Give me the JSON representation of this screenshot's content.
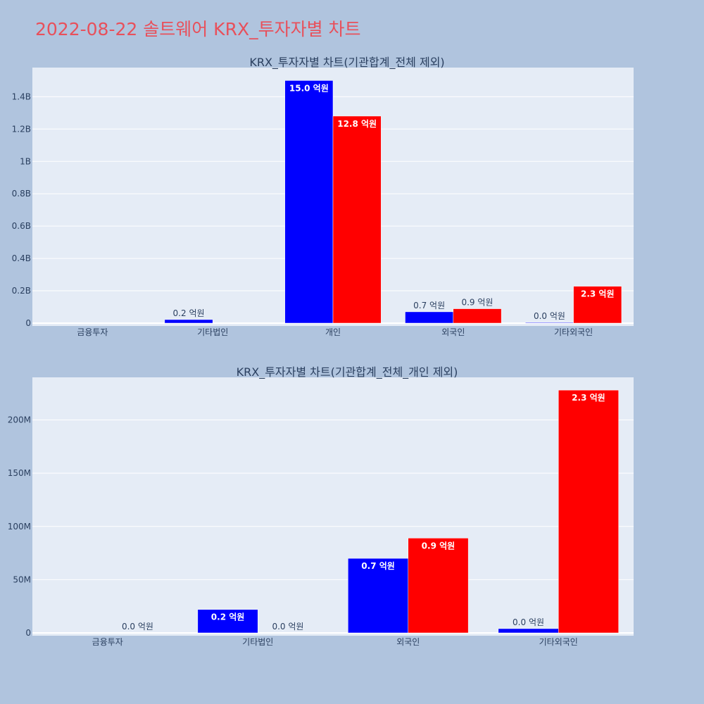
{
  "title": "2022-08-22 솔트웨어 KRX_투자자별 차트",
  "colors": {
    "buy": "#0000ff",
    "sell": "#ff0000",
    "plot_bg": "#e5ecf6",
    "page_bg": "#b0c4de",
    "title": "#e8505b"
  },
  "chart_data": [
    {
      "type": "bar",
      "title": "KRX_투자자별 차트(기관합계_전체 제외)",
      "categories": [
        "금융투자",
        "기타법인",
        "개인",
        "외국인",
        "기타외국인"
      ],
      "y_ticks": [
        0,
        200000000,
        400000000,
        600000000,
        800000000,
        1000000000,
        1200000000,
        1400000000
      ],
      "y_tick_labels": [
        "0",
        "0.2B",
        "0.4B",
        "0.6B",
        "0.8B",
        "1B",
        "1.2B",
        "1.4B"
      ],
      "ylim": [
        0,
        1580000000
      ],
      "series": [
        {
          "values": [
            null,
            22000000,
            1500000000,
            70000000,
            4000000
          ],
          "labels": [
            "",
            "0.2 억원",
            "15.0 억원",
            "0.7 억원",
            "0.0 억원"
          ]
        },
        {
          "values": [
            null,
            null,
            1280000000,
            89000000,
            228000000
          ],
          "labels": [
            "",
            "",
            "12.8 억원",
            "0.9 억원",
            "2.3 억원"
          ]
        }
      ]
    },
    {
      "type": "bar",
      "title": "KRX_투자자별 차트(기관합계_전체_개인 제외)",
      "categories": [
        "금융투자",
        "기타법인",
        "외국인",
        "기타외국인"
      ],
      "y_ticks": [
        0,
        50000000,
        100000000,
        150000000,
        200000000
      ],
      "y_tick_labels": [
        "0",
        "50M",
        "100M",
        "150M",
        "200M"
      ],
      "ylim": [
        0,
        240000000
      ],
      "series": [
        {
          "values": [
            null,
            22000000,
            70000000,
            4000000
          ],
          "labels": [
            "",
            "0.2 억원",
            "0.7 억원",
            "0.0 억원"
          ]
        },
        {
          "values": [
            0,
            0,
            89000000,
            228000000
          ],
          "labels": [
            "0.0 억원",
            "0.0 억원",
            "0.9 억원",
            "2.3 억원"
          ]
        }
      ]
    }
  ]
}
